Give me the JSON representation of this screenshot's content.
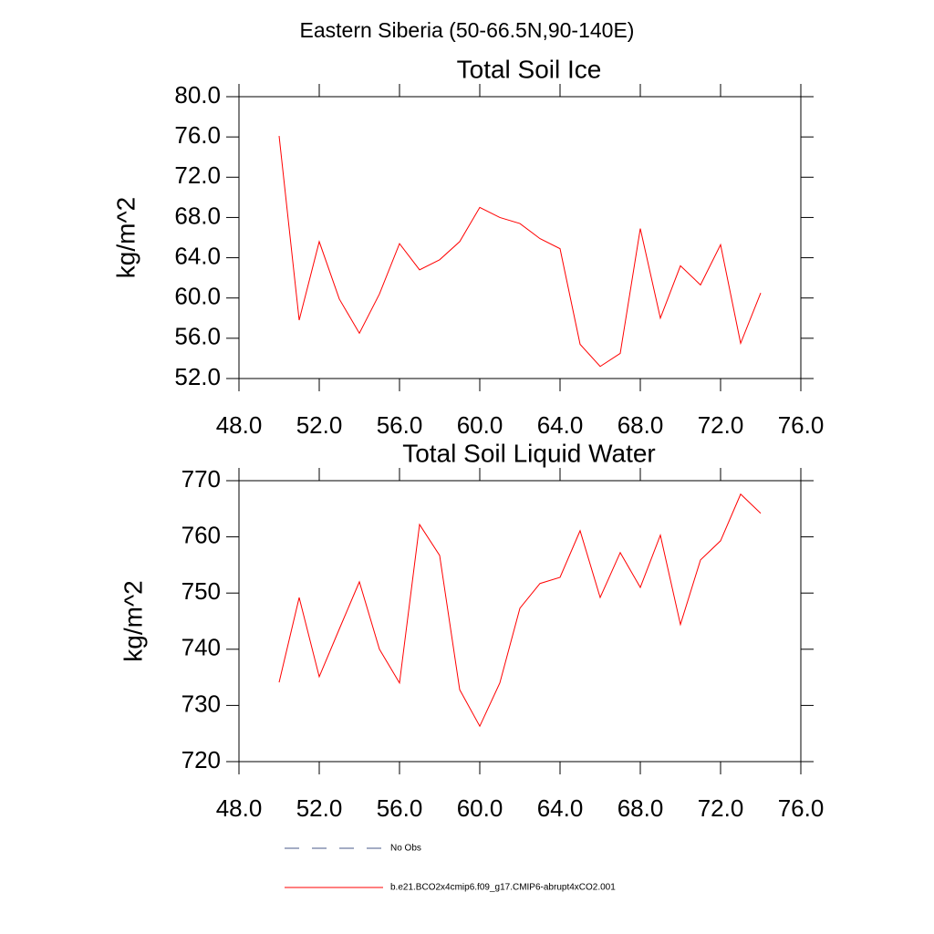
{
  "suptitle": "Eastern Siberia (50-66.5N,90-140E)",
  "chart_data": [
    {
      "type": "line",
      "title": "Total Soil Ice",
      "ylabel": "kg/m^2",
      "color": "#ff0000",
      "x": [
        50,
        51,
        52,
        53,
        54,
        55,
        56,
        57,
        58,
        59,
        60,
        61,
        62,
        63,
        64,
        65,
        66,
        67,
        68,
        69,
        70,
        71,
        72,
        73,
        74
      ],
      "values": [
        76.1,
        57.8,
        65.6,
        59.9,
        56.5,
        60.4,
        65.4,
        62.8,
        63.8,
        65.6,
        69.0,
        68.0,
        67.4,
        65.9,
        64.9,
        55.4,
        53.2,
        54.5,
        66.9,
        58.0,
        63.2,
        61.3,
        65.3,
        55.5,
        60.5
      ],
      "xlim": [
        48,
        76
      ],
      "ylim": [
        52,
        80
      ],
      "xticks": [
        {
          "value": 48,
          "label": "48.0"
        },
        {
          "value": 52,
          "label": "52.0"
        },
        {
          "value": 56,
          "label": "56.0"
        },
        {
          "value": 60,
          "label": "60.0"
        },
        {
          "value": 64,
          "label": "64.0"
        },
        {
          "value": 68,
          "label": "68.0"
        },
        {
          "value": 72,
          "label": "72.0"
        },
        {
          "value": 76,
          "label": "76.0"
        }
      ],
      "yticks": [
        {
          "value": 52,
          "label": "52.0"
        },
        {
          "value": 56,
          "label": "56.0"
        },
        {
          "value": 60,
          "label": "60.0"
        },
        {
          "value": 64,
          "label": "64.0"
        },
        {
          "value": 68,
          "label": "68.0"
        },
        {
          "value": 72,
          "label": "72.0"
        },
        {
          "value": 76,
          "label": "76.0"
        },
        {
          "value": 80,
          "label": "80.0"
        }
      ]
    },
    {
      "type": "line",
      "title": "Total Soil Liquid Water",
      "ylabel": "kg/m^2",
      "color": "#ff0000",
      "x": [
        50,
        51,
        52,
        53,
        54,
        55,
        56,
        57,
        58,
        59,
        60,
        61,
        62,
        63,
        64,
        65,
        66,
        67,
        68,
        69,
        70,
        71,
        72,
        73,
        74
      ],
      "values": [
        734.1,
        749.2,
        735.1,
        743.6,
        752.0,
        740.0,
        734.0,
        762.2,
        756.7,
        732.8,
        726.3,
        734.0,
        747.3,
        751.7,
        752.8,
        761.1,
        749.2,
        757.2,
        751.0,
        760.3,
        744.4,
        755.9,
        759.3,
        767.6,
        764.2
      ],
      "xlim": [
        48,
        76
      ],
      "ylim": [
        720,
        770
      ],
      "xticks": [
        {
          "value": 48,
          "label": "48.0"
        },
        {
          "value": 52,
          "label": "52.0"
        },
        {
          "value": 56,
          "label": "56.0"
        },
        {
          "value": 60,
          "label": "60.0"
        },
        {
          "value": 64,
          "label": "64.0"
        },
        {
          "value": 68,
          "label": "68.0"
        },
        {
          "value": 72,
          "label": "72.0"
        },
        {
          "value": 76,
          "label": "76.0"
        }
      ],
      "yticks": [
        720,
        730,
        740,
        750,
        760,
        770
      ]
    }
  ],
  "legend": [
    {
      "name": "No Obs",
      "color": "#4a5a8a",
      "dashed": true
    },
    {
      "name": "b.e21.BCO2x4cmip6.f09_g17.CMIP6-abrupt4xCO2.001",
      "color": "#ff0000",
      "dashed": false
    }
  ]
}
